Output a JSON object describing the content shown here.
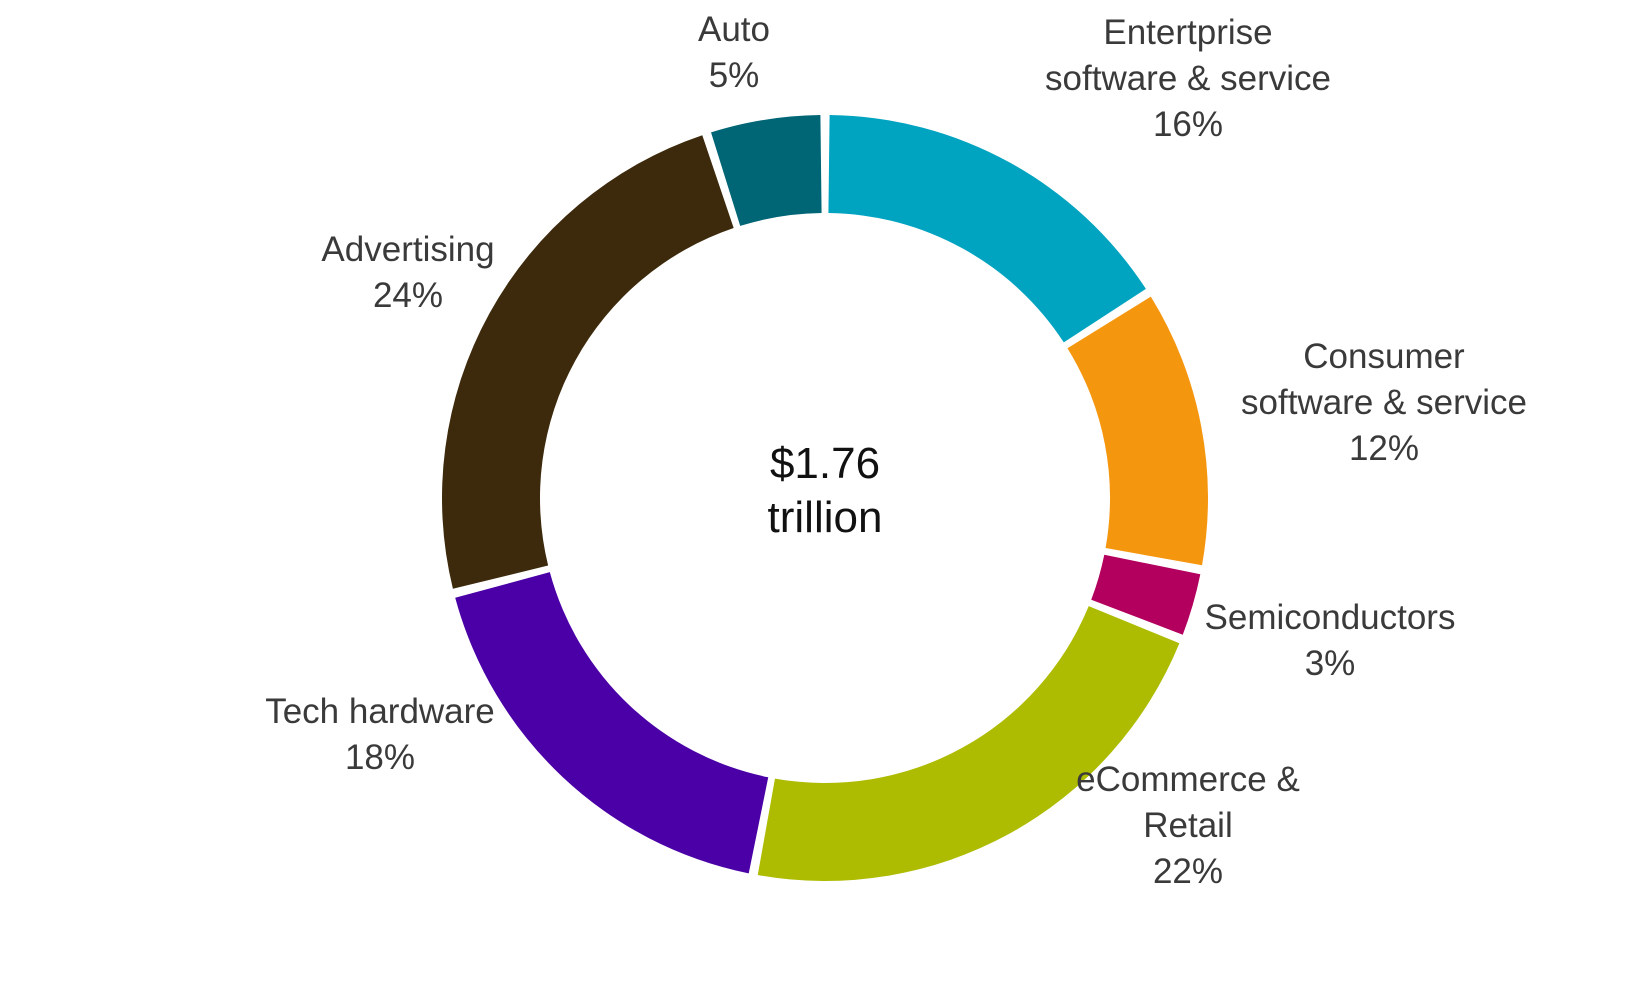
{
  "chart_data": {
    "type": "pie",
    "variant": "donut",
    "center_label": [
      "$1.76",
      "trillion"
    ],
    "slices": [
      {
        "name": [
          "Entertprise",
          "software & service"
        ],
        "value": 16,
        "value_label": "16%",
        "color": "#00a3c0"
      },
      {
        "name": [
          "Consumer",
          "software & service"
        ],
        "value": 12,
        "value_label": "12%",
        "color": "#f5960f"
      },
      {
        "name": [
          "Semiconductors"
        ],
        "value": 3,
        "value_label": "3%",
        "color": "#b3005f"
      },
      {
        "name": [
          "eCommerce &",
          "Retail"
        ],
        "value": 22,
        "value_label": "22%",
        "color": "#adbc00"
      },
      {
        "name": [
          "Tech hardware"
        ],
        "value": 18,
        "value_label": "18%",
        "color": "#4a00a6"
      },
      {
        "name": [
          "Advertising"
        ],
        "value": 24,
        "value_label": "24%",
        "color": "#3d2a0c"
      },
      {
        "name": [
          "Auto"
        ],
        "value": 5,
        "value_label": "5%",
        "color": "#006575"
      }
    ],
    "start": "12 o'clock",
    "direction": "clockwise",
    "legend": "none"
  }
}
